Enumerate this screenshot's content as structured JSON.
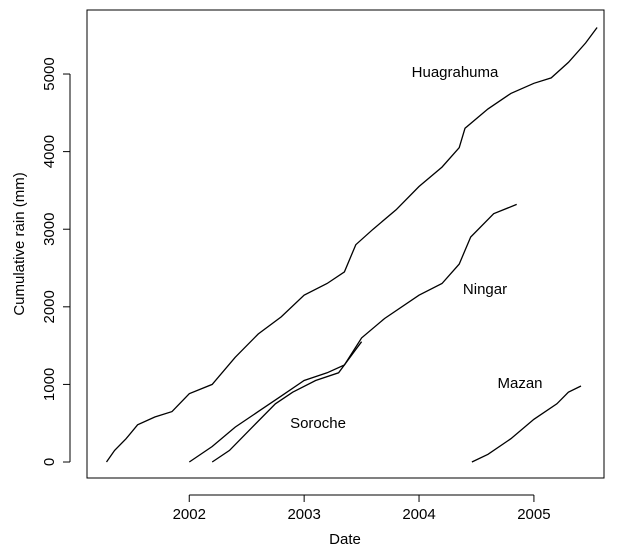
{
  "chart_data": {
    "type": "line",
    "x_label": "Date",
    "y_label": "Cumulative rain (mm)",
    "xlim": [
      2001.11,
      2005.61
    ],
    "ylim": [
      -206,
      5825
    ],
    "xticks": [
      2002,
      2003,
      2004,
      2005
    ],
    "yticks": [
      0,
      1000,
      2000,
      3000,
      4000,
      5000
    ],
    "series": [
      {
        "name": "Huagrahuma",
        "color": "#000000",
        "x": [
          2001.28,
          2001.35,
          2001.45,
          2001.55,
          2001.7,
          2001.85,
          2002.0,
          2002.2,
          2002.4,
          2002.6,
          2002.8,
          2003.0,
          2003.2,
          2003.35,
          2003.45,
          2003.6,
          2003.8,
          2004.0,
          2004.2,
          2004.35,
          2004.4,
          2004.6,
          2004.8,
          2005.0,
          2005.15,
          2005.3,
          2005.45,
          2005.55
        ],
        "values": [
          0,
          150,
          300,
          480,
          580,
          650,
          880,
          1000,
          1350,
          1650,
          1870,
          2150,
          2300,
          2450,
          2800,
          3000,
          3250,
          3550,
          3800,
          4050,
          4300,
          4550,
          4750,
          4880,
          4950,
          5150,
          5400,
          5600
        ]
      },
      {
        "name": "Ningar",
        "color": "#000000",
        "x": [
          2002.0,
          2002.2,
          2002.4,
          2002.6,
          2002.8,
          2003.0,
          2003.2,
          2003.35,
          2003.5,
          2003.7,
          2004.0,
          2004.2,
          2004.35,
          2004.45,
          2004.65,
          2004.85
        ],
        "values": [
          0,
          200,
          450,
          650,
          850,
          1050,
          1150,
          1250,
          1600,
          1850,
          2150,
          2300,
          2550,
          2900,
          3200,
          3320
        ]
      },
      {
        "name": "Mazan",
        "color": "#000000",
        "x": [
          2004.46,
          2004.6,
          2004.8,
          2005.0,
          2005.2,
          2005.3,
          2005.41
        ],
        "values": [
          0,
          100,
          300,
          550,
          750,
          900,
          980
        ]
      },
      {
        "name": "Soroche",
        "color": "#000000",
        "x": [
          2002.2,
          2002.35,
          2002.55,
          2002.75,
          2002.9,
          2003.1,
          2003.3,
          2003.45,
          2003.5
        ],
        "values": [
          0,
          150,
          450,
          750,
          900,
          1050,
          1150,
          1450,
          1550
        ]
      }
    ]
  }
}
